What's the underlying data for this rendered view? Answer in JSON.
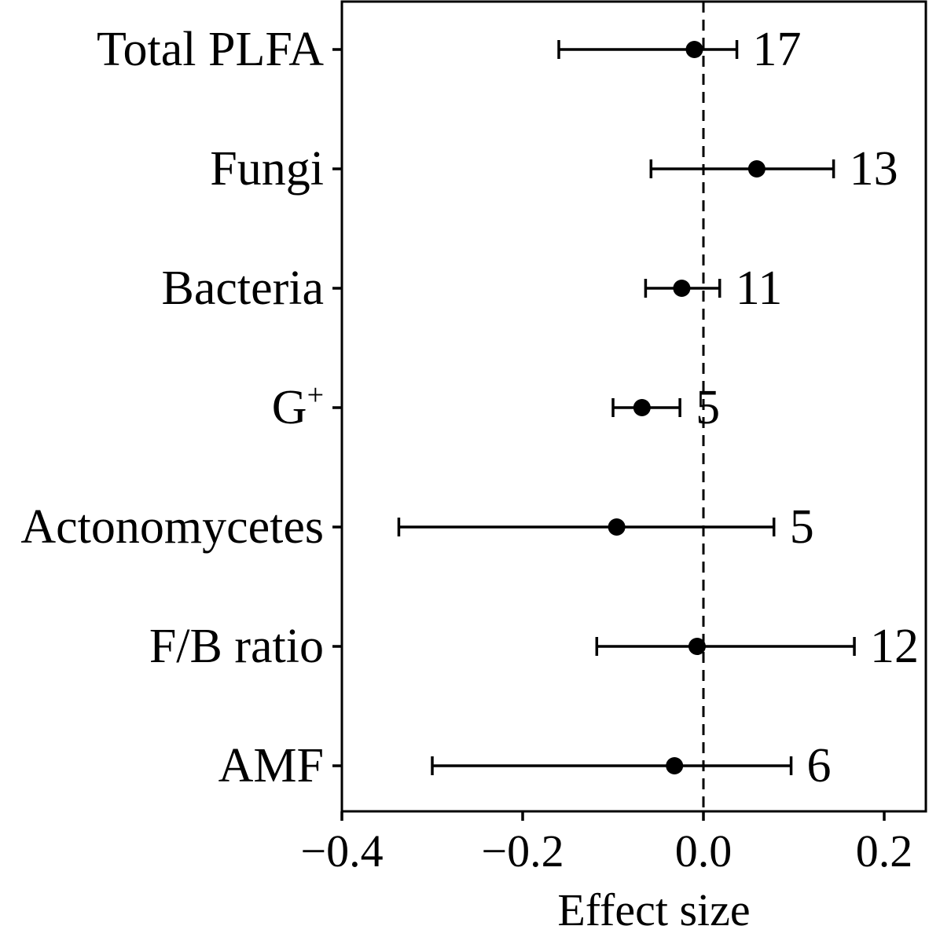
{
  "chart_data": {
    "type": "forest",
    "xlabel": "Effect size",
    "xlim": [
      -0.4,
      0.25
    ],
    "xticks": [
      -0.4,
      -0.2,
      0.0,
      0.2
    ],
    "xtick_labels": [
      "−0.4",
      "−0.2",
      "0.0",
      "0.2"
    ],
    "reference_line": 0.0,
    "series": [
      {
        "label": "Total PLFA",
        "label_main": "Total PLFA",
        "label_sup": "",
        "mean": -0.01,
        "lower": -0.16,
        "upper": 0.037,
        "n": "17"
      },
      {
        "label": "Fungi",
        "label_main": "Fungi",
        "label_sup": "",
        "mean": 0.059,
        "lower": -0.058,
        "upper": 0.144,
        "n": "13"
      },
      {
        "label": "Bacteria",
        "label_main": "Bacteria",
        "label_sup": "",
        "mean": -0.024,
        "lower": -0.064,
        "upper": 0.018,
        "n": "11"
      },
      {
        "label": "G+",
        "label_main": "G",
        "label_sup": "+",
        "mean": -0.068,
        "lower": -0.1,
        "upper": -0.026,
        "n": "5"
      },
      {
        "label": "Actonomycetes",
        "label_main": "Actonomycetes",
        "label_sup": "",
        "mean": -0.096,
        "lower": -0.337,
        "upper": 0.078,
        "n": "5"
      },
      {
        "label": "F/B ratio",
        "label_main": "F/B ratio",
        "label_sup": "",
        "mean": -0.007,
        "lower": -0.118,
        "upper": 0.167,
        "n": "12"
      },
      {
        "label": "AMF",
        "label_main": "AMF",
        "label_sup": "",
        "mean": -0.032,
        "lower": -0.3,
        "upper": 0.097,
        "n": "6"
      }
    ]
  }
}
